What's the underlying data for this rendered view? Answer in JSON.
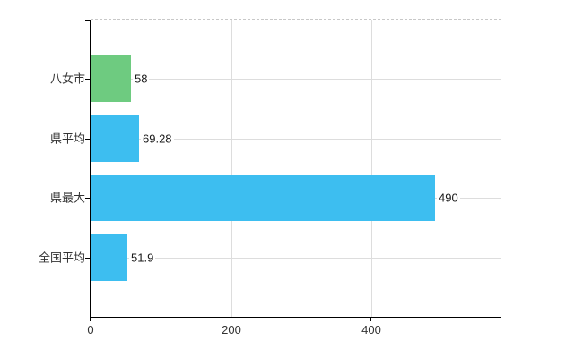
{
  "chart_data": {
    "type": "bar",
    "orientation": "horizontal",
    "title": "",
    "xlabel": "",
    "ylabel": "",
    "categories": [
      "八女市",
      "県平均",
      "県最大",
      "全国平均"
    ],
    "values": [
      58,
      69.28,
      490,
      51.9
    ],
    "value_labels": [
      "58",
      "69.28",
      "490",
      "51.9"
    ],
    "bar_colors": [
      "#6ecb80",
      "#3dbef0",
      "#3dbef0",
      "#3dbef0"
    ],
    "x_tick_values": [
      0,
      200,
      400
    ],
    "x_tick_labels": [
      "0",
      "200",
      "400"
    ],
    "xlim": [
      0,
      585
    ],
    "grid": true,
    "legend": false,
    "colors": {
      "highlight_bar": "#6ecb80",
      "default_bar": "#3dbef0",
      "gridline": "#dddddd",
      "axis": "#000000",
      "plot_top_border": "#c8c8c8",
      "text": "#333333",
      "background": "#ffffff"
    }
  }
}
